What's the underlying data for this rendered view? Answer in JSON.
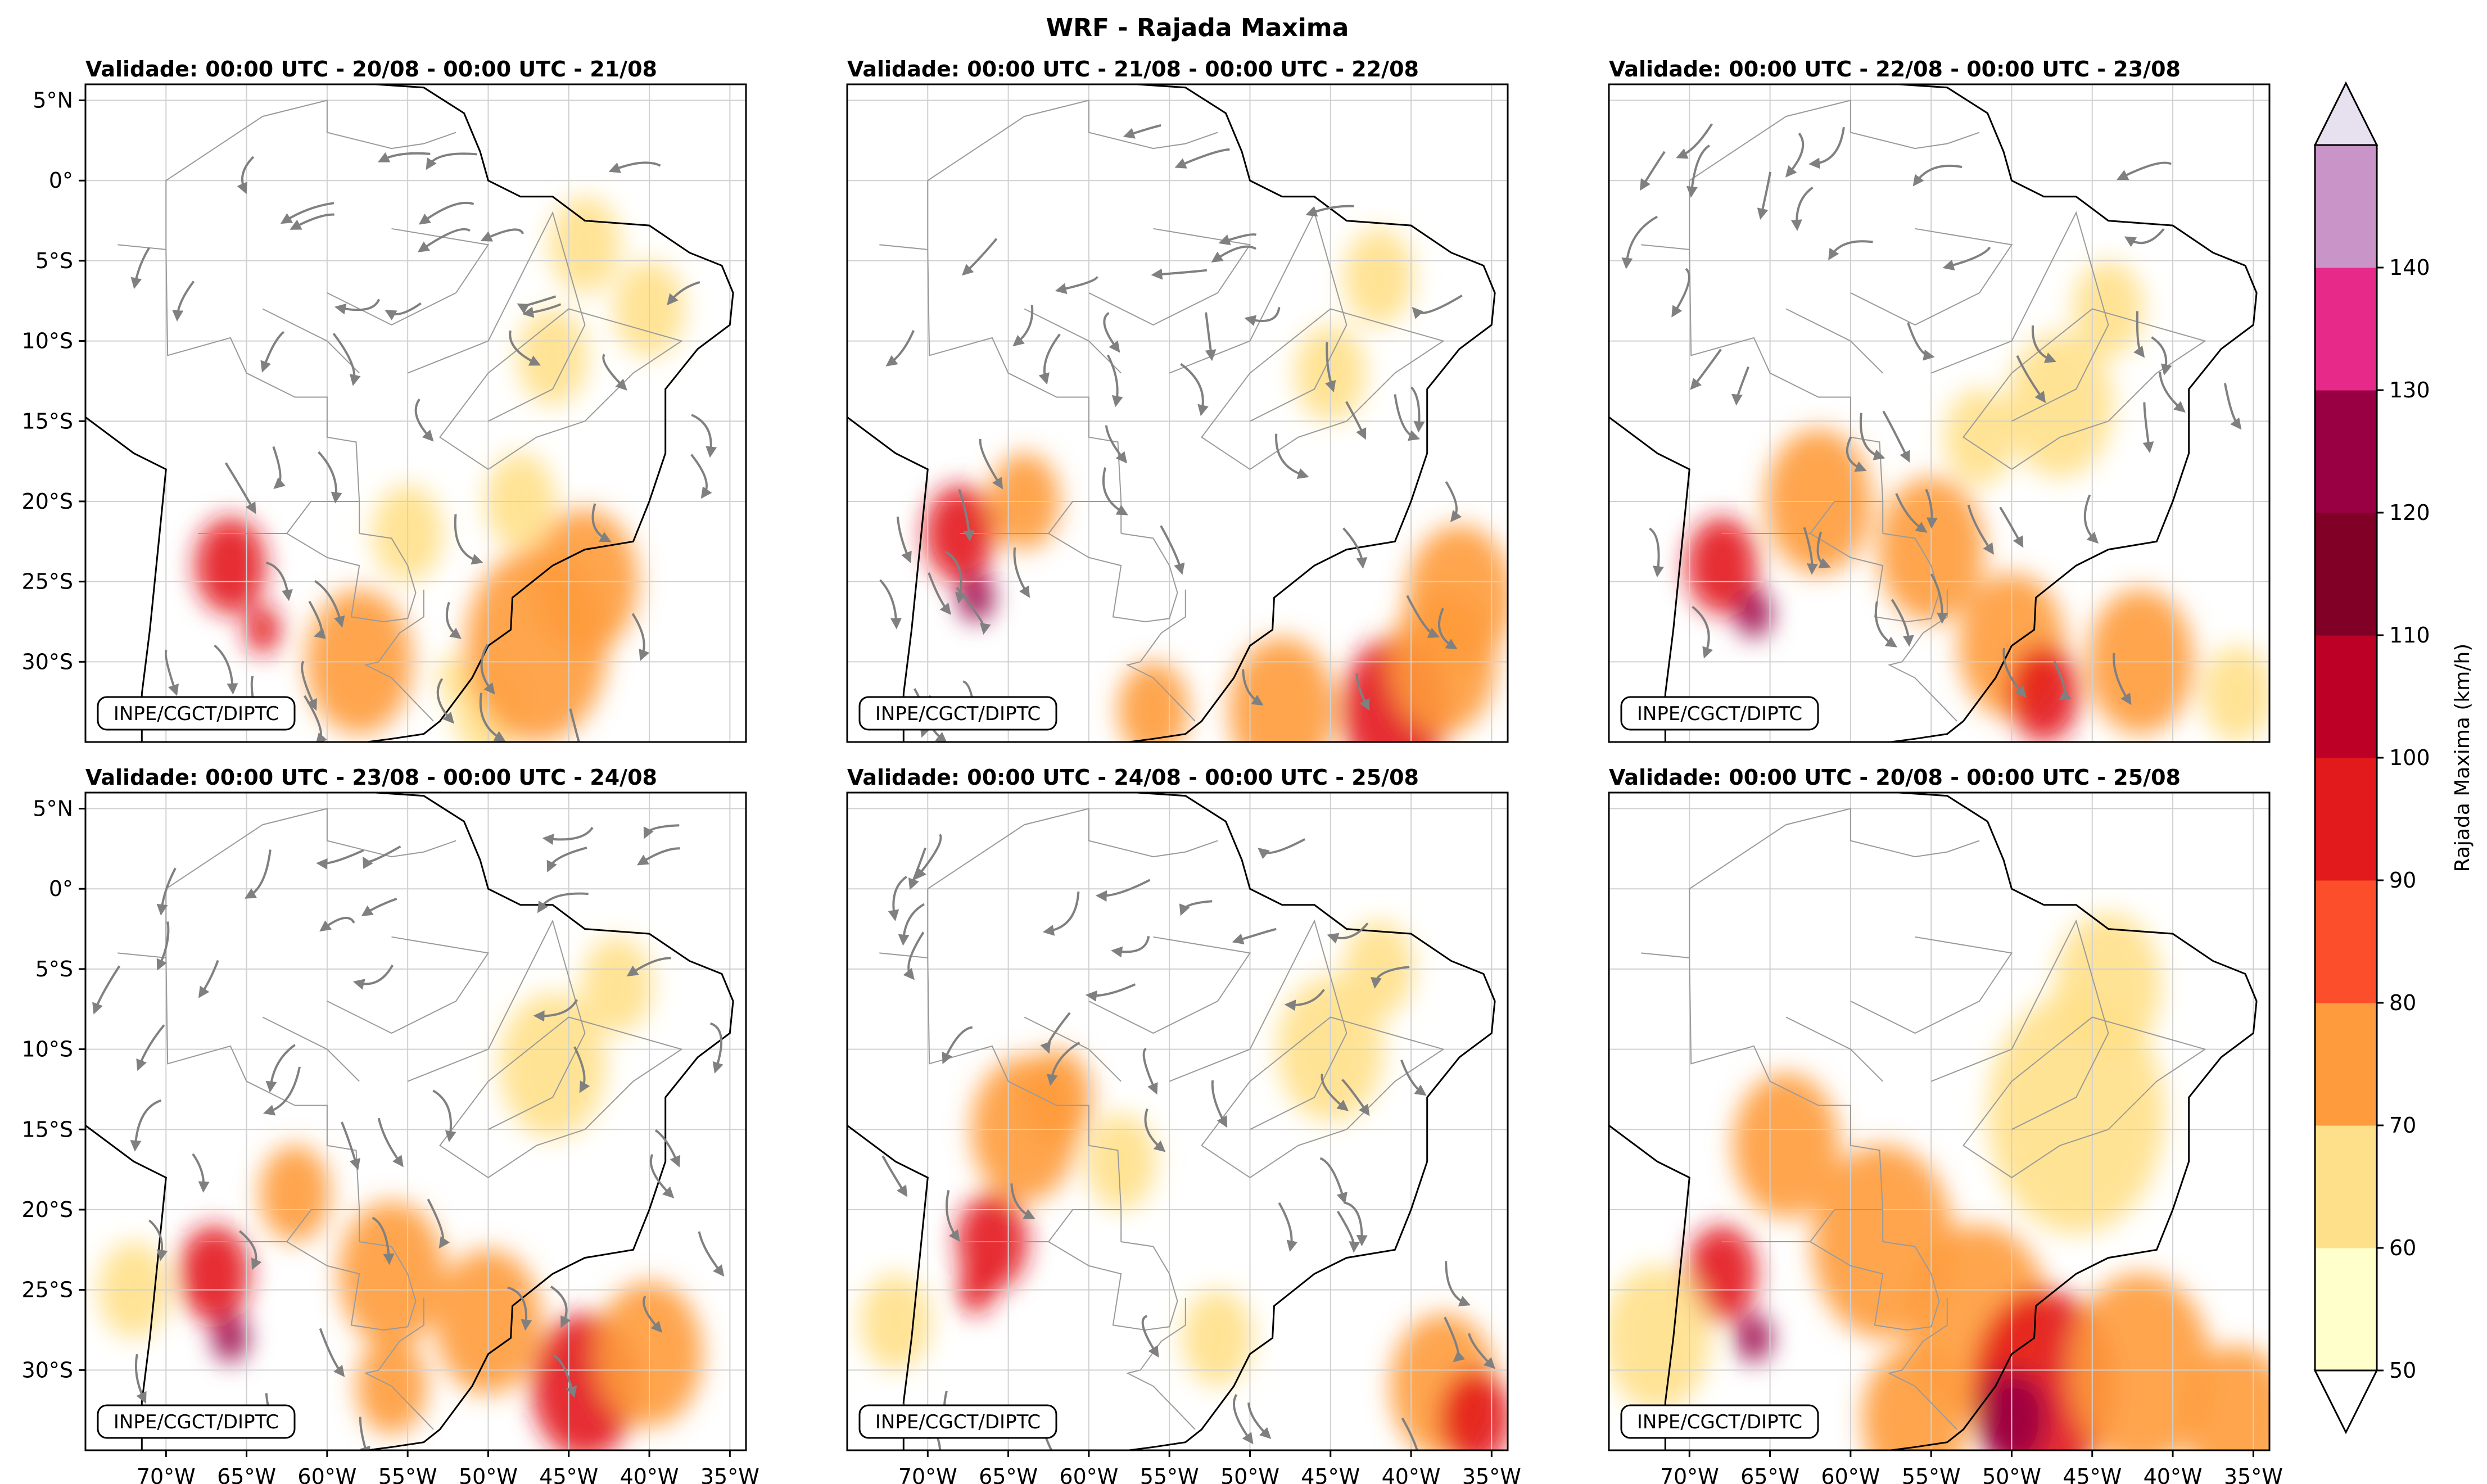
{
  "figure": {
    "title": "WRF - Rajada Maxima",
    "credit": "INPE/CGCT/DIPTC"
  },
  "panels": [
    {
      "title": "Validade: 00:00 UTC - 20/08 - 00:00 UTC - 21/08",
      "streamlines": true,
      "blobs": [
        [
          -52,
          -31,
          1,
          "d1"
        ],
        [
          -50,
          -33,
          2,
          "d1"
        ],
        [
          -47,
          -29,
          4,
          "d2"
        ],
        [
          -44,
          -25,
          3,
          "d2"
        ],
        [
          -66,
          -24,
          2,
          "d3"
        ],
        [
          -64,
          -28,
          1,
          "d3"
        ],
        [
          -58,
          -30,
          3,
          "d2"
        ],
        [
          -46,
          -11,
          2,
          "d1"
        ],
        [
          -40,
          -8,
          2,
          "d1"
        ],
        [
          -48,
          -20,
          2,
          "d1"
        ],
        [
          -55,
          -22,
          2,
          "d1"
        ],
        [
          -44,
          -4,
          2,
          "d1"
        ]
      ]
    },
    {
      "title": "Validade: 00:00 UTC - 21/08 - 00:00 UTC - 22/08",
      "streamlines": true,
      "blobs": [
        [
          -68,
          -22,
          2,
          "d3"
        ],
        [
          -67,
          -26,
          1,
          "d4"
        ],
        [
          -64,
          -20,
          2,
          "d2"
        ],
        [
          -41,
          -33,
          3,
          "d3"
        ],
        [
          -38,
          -30,
          3,
          "d2"
        ],
        [
          -48,
          -33,
          3,
          "d2"
        ],
        [
          -56,
          -33,
          2,
          "d2"
        ],
        [
          -45,
          -12,
          2,
          "d1"
        ],
        [
          -42,
          -6,
          2,
          "d1"
        ],
        [
          -37,
          -26,
          3,
          "d2"
        ]
      ]
    },
    {
      "title": "Validade: 00:00 UTC - 22/08 - 00:00 UTC - 23/08",
      "streamlines": true,
      "blobs": [
        [
          -68,
          -24,
          2,
          "d3"
        ],
        [
          -66,
          -27,
          1,
          "d4"
        ],
        [
          -62,
          -20,
          3,
          "d2"
        ],
        [
          -55,
          -23,
          3,
          "d2"
        ],
        [
          -50,
          -29,
          3,
          "d2"
        ],
        [
          -48,
          -32,
          2,
          "d3"
        ],
        [
          -42,
          -30,
          3,
          "d2"
        ],
        [
          -36,
          -32,
          2,
          "d1"
        ],
        [
          -47,
          -14,
          3,
          "d1"
        ],
        [
          -44,
          -8,
          2,
          "d1"
        ],
        [
          -52,
          -16,
          2,
          "d1"
        ]
      ]
    },
    {
      "title": "Validade: 00:00 UTC - 23/08 - 00:00 UTC - 24/08",
      "streamlines": true,
      "blobs": [
        [
          -67,
          -24,
          2,
          "d3"
        ],
        [
          -66,
          -28,
          1,
          "d4"
        ],
        [
          -62,
          -19,
          2,
          "d2"
        ],
        [
          -56,
          -24,
          3,
          "d2"
        ],
        [
          -50,
          -27,
          3,
          "d2"
        ],
        [
          -44,
          -31,
          3,
          "d3"
        ],
        [
          -40,
          -29,
          3,
          "d2"
        ],
        [
          -46,
          -11,
          3,
          "d1"
        ],
        [
          -42,
          -6,
          2,
          "d1"
        ],
        [
          -72,
          -25,
          2,
          "d1"
        ],
        [
          -56,
          -31,
          2,
          "d2"
        ]
      ]
    },
    {
      "title": "Validade: 00:00 UTC - 24/08 - 00:00 UTC - 25/08",
      "streamlines": true,
      "blobs": [
        [
          -64,
          -15,
          3,
          "d2"
        ],
        [
          -62,
          -13,
          2,
          "d2"
        ],
        [
          -66,
          -22,
          2,
          "d3"
        ],
        [
          -67,
          -25,
          1,
          "d3"
        ],
        [
          -38,
          -31,
          3,
          "d2"
        ],
        [
          -36,
          -33,
          2,
          "d3"
        ],
        [
          -45,
          -10,
          3,
          "d1"
        ],
        [
          -42,
          -5,
          2,
          "d1"
        ],
        [
          -58,
          -17,
          2,
          "d1"
        ],
        [
          -72,
          -27,
          2,
          "d1"
        ],
        [
          -52,
          -28,
          2,
          "d1"
        ]
      ]
    },
    {
      "title": "Validade: 00:00 UTC - 20/08 - 00:00 UTC - 25/08",
      "streamlines": false,
      "blobs": [
        [
          -68,
          -24,
          2,
          "d3"
        ],
        [
          -66,
          -28,
          1,
          "d4"
        ],
        [
          -64,
          -16,
          3,
          "d2"
        ],
        [
          -58,
          -22,
          4,
          "d2"
        ],
        [
          -52,
          -27,
          4,
          "d2"
        ],
        [
          -48,
          -31,
          4,
          "d3"
        ],
        [
          -50,
          -33,
          2,
          "d4"
        ],
        [
          -42,
          -30,
          4,
          "d2"
        ],
        [
          -46,
          -14,
          5,
          "d1"
        ],
        [
          -44,
          -6,
          3,
          "d1"
        ],
        [
          -36,
          -33,
          3,
          "d2"
        ],
        [
          -56,
          -33,
          3,
          "d2"
        ],
        [
          -72,
          -28,
          3,
          "d1"
        ]
      ]
    }
  ],
  "axes": {
    "lat_ticks": [
      5,
      0,
      -5,
      -10,
      -15,
      -20,
      -25,
      -30
    ],
    "lat_labels": [
      "5°N",
      "0°",
      "5°S",
      "10°S",
      "15°S",
      "20°S",
      "25°S",
      "30°S"
    ],
    "lon_ticks": [
      -70,
      -65,
      -60,
      -55,
      -50,
      -45,
      -40,
      -35
    ],
    "lon_labels": [
      "70°W",
      "65°W",
      "60°W",
      "55°W",
      "50°W",
      "45°W",
      "40°W",
      "35°W"
    ],
    "lon_range": [
      -75,
      -34
    ],
    "lat_range": [
      -35,
      6
    ]
  },
  "colorbar": {
    "label": "Rajada Maxima (km/h)",
    "levels": [
      50,
      60,
      70,
      80,
      90,
      100,
      110,
      120,
      130,
      140
    ],
    "level_labels": [
      "50",
      "60",
      "70",
      "80",
      "90",
      "100",
      "110",
      "120",
      "130",
      "140"
    ],
    "colors": [
      "#ffffcc",
      "#ffe08a",
      "#fe9b3c",
      "#fc4e2a",
      "#e31a1c",
      "#bd0026",
      "#800026",
      "#980043",
      "#e7298a",
      "#c994c7"
    ],
    "over_color": "#e7e1ef",
    "under_color": "#ffffff"
  },
  "palette": {
    "d1": "#ffe08a",
    "d2": "#fe9b3c",
    "d3": "#e31a1c",
    "d4": "#980043",
    "streamline": "#808080",
    "coast": "#000000",
    "border": "#9a9a9a",
    "grid": "#d0d0d0"
  }
}
